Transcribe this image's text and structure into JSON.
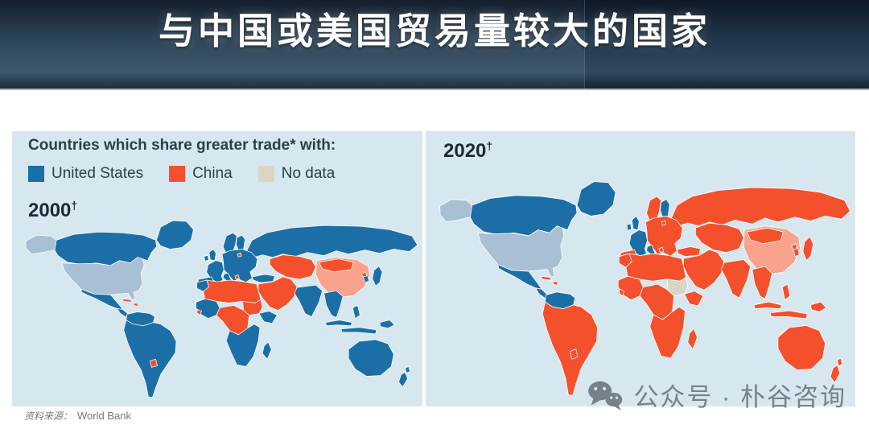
{
  "header": {
    "title": "与中国或美国贸易量较大的国家"
  },
  "colors": {
    "us": "#1b6fa6",
    "china": "#f4502c",
    "us_self": "#a9bfd4",
    "china_self": "#f8a38b",
    "nodata": "#d8d7c7",
    "ocean": "#d7e7ef",
    "border": "#ffffff"
  },
  "chart_data": {
    "type": "heatmap",
    "subtype": "choropleth-world-map-pair",
    "title": "Countries which share greater trade* with:",
    "legend": [
      {
        "key": "us",
        "label": "United States",
        "color": "#1b6fa6"
      },
      {
        "key": "china",
        "label": "China",
        "color": "#f4502c"
      },
      {
        "key": "nodata",
        "label": "No data",
        "color": "#d8d7c7"
      }
    ],
    "maps": [
      {
        "id": "2000",
        "label": "2000",
        "dagger": "†",
        "regions": {
          "greenland": "us",
          "alaska": "us_self",
          "canada": "us",
          "usa": "us_self",
          "mexico": "us",
          "centralamerica": "us",
          "cuba": "china",
          "hispaniola": "china",
          "colombia_venezuela": "us",
          "southamerica": "us",
          "paraguay": "china",
          "uk_ireland": "us",
          "norway_sweden": "us",
          "finland": "us",
          "westeurope": "us",
          "iberia": "us",
          "italy": "us",
          "easteurope": "us",
          "baltics_dot": "china",
          "balkans_dot": "china",
          "turkey": "us",
          "russia": "us",
          "centralasia": "china",
          "middleeast": "china",
          "morocco": "us",
          "northafrica": "china",
          "westafrica": "us",
          "guinea_coast": "china",
          "centralafrica": "china",
          "sudan": "china",
          "eastafrica": "us",
          "southernafrica": "us",
          "madagascar": "us",
          "china": "china_self",
          "mongolia": "china",
          "korea": "us",
          "nkorea_dot": "china",
          "japan": "us",
          "india": "us",
          "seasia": "us",
          "indonesia_west": "us",
          "indonesia_east": "us",
          "philippines": "us",
          "papua": "us",
          "australia": "us",
          "newzealand": "us"
        }
      },
      {
        "id": "2020",
        "label": "2020",
        "dagger": "†",
        "regions": {
          "greenland": "us",
          "alaska": "us_self",
          "canada": "us",
          "usa": "us_self",
          "mexico": "us",
          "centralamerica": "us",
          "cuba": "china",
          "hispaniola": "china",
          "colombia_venezuela": "us",
          "southamerica": "china",
          "paraguay": "china",
          "uk_ireland": "us",
          "norway_sweden": "china",
          "finland": "us",
          "westeurope": "us",
          "iberia": "china",
          "italy": "us",
          "easteurope": "china",
          "baltics_dot": "china",
          "balkans_dot": "china",
          "turkey": "china",
          "russia": "china",
          "centralasia": "china",
          "middleeast": "china",
          "morocco": "china",
          "northafrica": "china",
          "westafrica": "china",
          "guinea_coast": "china",
          "centralafrica": "china",
          "sudan": "nodata",
          "eastafrica": "china",
          "southernafrica": "china",
          "madagascar": "china",
          "china": "china_self",
          "mongolia": "china",
          "korea": "china",
          "nkorea_dot": "china",
          "japan": "china",
          "india": "china",
          "seasia": "china",
          "indonesia_west": "china",
          "indonesia_east": "china",
          "philippines": "china",
          "papua": "china",
          "australia": "china",
          "newzealand": "china"
        }
      }
    ]
  },
  "footer": {
    "source_prefix": "资料来源：",
    "source": "World Bank"
  },
  "watermark": {
    "text": "公众号 · 朴谷咨询"
  }
}
